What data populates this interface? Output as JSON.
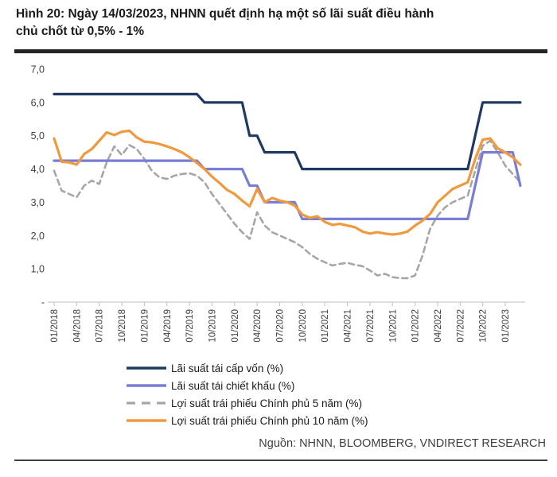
{
  "figure": {
    "title_line1": "Hình 20: Ngày 14/03/2023, NHNN quết định hạ một số lãi suất điều hành",
    "title_line2": "chủ chốt từ 0,5% - 1%",
    "source": "Nguồn: NHNN, BLOOMBERG, VNDIRECT RESEARCH"
  },
  "chart_data": {
    "type": "line",
    "title": "Hình 20: Ngày 14/03/2023, NHNN quết định hạ một số lãi suất điều hành chủ chốt từ 0,5% - 1%",
    "x_unit": "month",
    "x_start": "01/2018",
    "x_end": "03/2023",
    "x_points": 63,
    "xlabel": "",
    "ylabel": "",
    "ylim": [
      0,
      7
    ],
    "grid": false,
    "legend_position": "bottom",
    "x_tick_labels": [
      "01/2018",
      "04/2018",
      "07/2018",
      "10/2018",
      "01/2019",
      "04/2019",
      "07/2019",
      "10/2019",
      "01/2020",
      "04/2020",
      "07/2020",
      "10/2020",
      "01/2021",
      "04/2021",
      "07/2021",
      "10/2021",
      "01/2022",
      "04/2022",
      "07/2022",
      "10/2022",
      "01/2023"
    ],
    "x_tick_month_step": 3,
    "y_ticks": [
      {
        "label": "7,0",
        "value": 7
      },
      {
        "label": "6,0",
        "value": 6
      },
      {
        "label": "5,0",
        "value": 5
      },
      {
        "label": "4,0",
        "value": 4
      },
      {
        "label": "3,0",
        "value": 3
      },
      {
        "label": "2,0",
        "value": 2
      },
      {
        "label": "1,0",
        "value": 1
      },
      {
        "label": "-",
        "value": 0
      }
    ],
    "series": [
      {
        "name": "Lãi suất tái cấp vốn (%)",
        "color": "#1F3864",
        "style": "solid",
        "values": [
          6.25,
          6.25,
          6.25,
          6.25,
          6.25,
          6.25,
          6.25,
          6.25,
          6.25,
          6.25,
          6.25,
          6.25,
          6.25,
          6.25,
          6.25,
          6.25,
          6.25,
          6.25,
          6.25,
          6.25,
          6.0,
          6.0,
          6.0,
          6.0,
          6.0,
          6.0,
          5.0,
          5.0,
          4.5,
          4.5,
          4.5,
          4.5,
          4.5,
          4.0,
          4.0,
          4.0,
          4.0,
          4.0,
          4.0,
          4.0,
          4.0,
          4.0,
          4.0,
          4.0,
          4.0,
          4.0,
          4.0,
          4.0,
          4.0,
          4.0,
          4.0,
          4.0,
          4.0,
          4.0,
          4.0,
          4.0,
          5.0,
          6.0,
          6.0,
          6.0,
          6.0,
          6.0,
          6.0
        ]
      },
      {
        "name": "Lãi suất tái chiết khấu (%)",
        "color": "#7A7DD4",
        "style": "solid",
        "values": [
          4.25,
          4.25,
          4.25,
          4.25,
          4.25,
          4.25,
          4.25,
          4.25,
          4.25,
          4.25,
          4.25,
          4.25,
          4.25,
          4.25,
          4.25,
          4.25,
          4.25,
          4.25,
          4.25,
          4.25,
          4.0,
          4.0,
          4.0,
          4.0,
          4.0,
          4.0,
          3.5,
          3.5,
          3.0,
          3.0,
          3.0,
          3.0,
          3.0,
          2.5,
          2.5,
          2.5,
          2.5,
          2.5,
          2.5,
          2.5,
          2.5,
          2.5,
          2.5,
          2.5,
          2.5,
          2.5,
          2.5,
          2.5,
          2.5,
          2.5,
          2.5,
          2.5,
          2.5,
          2.5,
          2.5,
          2.5,
          3.5,
          4.5,
          4.5,
          4.5,
          4.5,
          4.5,
          3.5
        ]
      },
      {
        "name": "Lợi suất trái phiếu Chính phủ 5 năm (%)",
        "color": "#A6A6A6",
        "style": "dashed",
        "values": [
          3.95,
          3.35,
          3.25,
          3.15,
          3.5,
          3.65,
          3.55,
          4.2,
          4.68,
          4.42,
          4.72,
          4.6,
          4.3,
          3.95,
          3.75,
          3.7,
          3.8,
          3.85,
          3.87,
          3.8,
          3.6,
          3.25,
          2.95,
          2.65,
          2.35,
          2.1,
          1.9,
          2.7,
          2.3,
          2.1,
          2.0,
          1.9,
          1.8,
          1.65,
          1.45,
          1.3,
          1.2,
          1.1,
          1.15,
          1.18,
          1.12,
          1.08,
          0.95,
          0.8,
          0.85,
          0.75,
          0.72,
          0.72,
          0.8,
          1.4,
          2.2,
          2.6,
          2.85,
          3.0,
          3.1,
          3.2,
          3.95,
          4.7,
          4.85,
          4.5,
          4.1,
          3.85,
          3.6
        ]
      },
      {
        "name": "Lợi suất trái phiếu Chính phủ 10 năm (%)",
        "color": "#F0993E",
        "style": "solid",
        "values": [
          4.92,
          4.22,
          4.2,
          4.13,
          4.45,
          4.6,
          4.85,
          5.1,
          5.02,
          5.12,
          5.15,
          4.95,
          4.82,
          4.8,
          4.75,
          4.68,
          4.6,
          4.5,
          4.35,
          4.18,
          4.0,
          3.77,
          3.58,
          3.37,
          3.25,
          3.05,
          2.88,
          3.4,
          3.0,
          3.13,
          3.05,
          3.0,
          2.9,
          2.63,
          2.53,
          2.58,
          2.41,
          2.32,
          2.35,
          2.3,
          2.25,
          2.12,
          2.06,
          2.1,
          2.06,
          2.03,
          2.06,
          2.12,
          2.3,
          2.45,
          2.65,
          3.0,
          3.2,
          3.4,
          3.5,
          3.6,
          4.3,
          4.88,
          4.92,
          4.62,
          4.5,
          4.35,
          4.13
        ]
      }
    ]
  }
}
